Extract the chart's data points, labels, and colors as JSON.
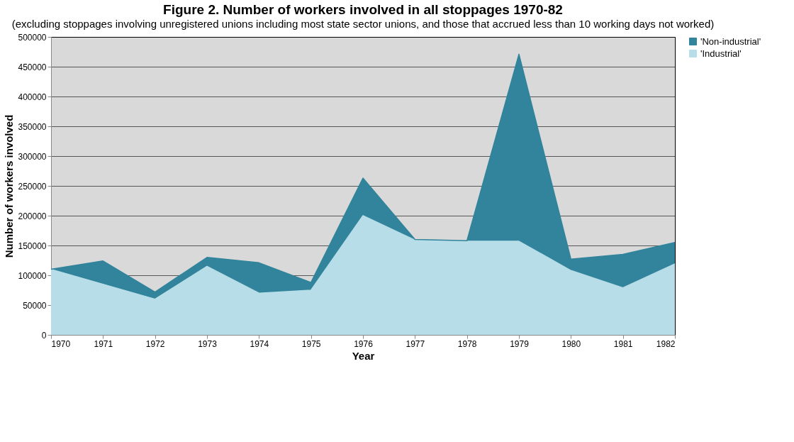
{
  "chart_data": {
    "type": "area",
    "title": "Figure 2. Number of workers involved in all stoppages 1970-82",
    "subtitle": "(excluding stoppages involving unregistered unions including most state sector unions, and those that accrued less than 10 working days not worked)",
    "xlabel": "Year",
    "ylabel": "Number of workers involved",
    "x": [
      1970,
      1971,
      1972,
      1973,
      1974,
      1975,
      1976,
      1977,
      1978,
      1979,
      1980,
      1981,
      1982
    ],
    "stacked": true,
    "series": [
      {
        "name": "'Industrial'",
        "color": "#b7dde8",
        "values": [
          110000,
          85000,
          60000,
          115000,
          70000,
          75000,
          200000,
          159000,
          157000,
          157000,
          108000,
          79000,
          119000
        ]
      },
      {
        "name": "'Non-industrial'",
        "color": "#31849b",
        "values": [
          0,
          39000,
          12000,
          15000,
          51000,
          13000,
          63000,
          1000,
          1000,
          314000,
          19000,
          56000,
          36000
        ]
      }
    ],
    "xlim": [
      1970,
      1982
    ],
    "xticks": [
      1970,
      1971,
      1972,
      1973,
      1974,
      1975,
      1976,
      1977,
      1978,
      1979,
      1980,
      1981,
      1982
    ],
    "ylim": [
      0,
      500000
    ],
    "yticks": [
      0,
      50000,
      100000,
      150000,
      200000,
      250000,
      300000,
      350000,
      400000,
      450000,
      500000
    ],
    "grid": "y",
    "legend": "right"
  }
}
